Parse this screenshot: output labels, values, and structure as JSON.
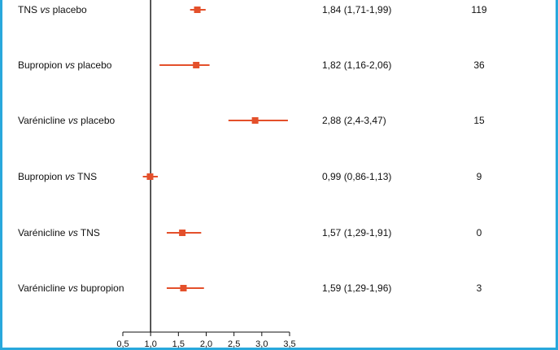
{
  "colors": {
    "accent": "#e4502b",
    "axis": "#111111",
    "frame": "#29a8dc"
  },
  "chart_data": {
    "type": "forest",
    "title": "",
    "xlabel": "",
    "ylabel": "",
    "xlim": [
      0.5,
      3.5
    ],
    "x_ticks": [
      0.5,
      1.0,
      1.5,
      2.0,
      2.5,
      3.0,
      3.5
    ],
    "x_tick_labels": [
      "0,5",
      "1,0",
      "1,5",
      "2,0",
      "2,5",
      "3,0",
      "3,5"
    ],
    "reference_line": 1.0,
    "grid": false,
    "rows": [
      {
        "label_a": "TNS",
        "vs": "vs",
        "label_b": "placebo",
        "or": 1.84,
        "lo": 1.71,
        "hi": 1.99,
        "ci_text": "1,84 (1,71-1,99)",
        "n": "119"
      },
      {
        "label_a": "Bupropion",
        "vs": "vs",
        "label_b": "placebo",
        "or": 1.82,
        "lo": 1.16,
        "hi": 2.06,
        "ci_text": "1,82 (1,16-2,06)",
        "n": "36"
      },
      {
        "label_a": "Varénicline",
        "vs": "vs",
        "label_b": "placebo",
        "or": 2.88,
        "lo": 2.4,
        "hi": 3.47,
        "ci_text": "2,88 (2,4-3,47)",
        "n": "15"
      },
      {
        "label_a": "Bupropion",
        "vs": "vs",
        "label_b": "TNS",
        "or": 0.99,
        "lo": 0.86,
        "hi": 1.13,
        "ci_text": "0,99 (0,86-1,13)",
        "n": "9"
      },
      {
        "label_a": "Varénicline",
        "vs": "vs",
        "label_b": "TNS",
        "or": 1.57,
        "lo": 1.29,
        "hi": 1.91,
        "ci_text": "1,57 (1,29-1,91)",
        "n": "0"
      },
      {
        "label_a": "Varénicline",
        "vs": "vs",
        "label_b": "bupropion",
        "or": 1.59,
        "lo": 1.29,
        "hi": 1.96,
        "ci_text": "1,59 (1,29-1,96)",
        "n": "3"
      }
    ]
  }
}
